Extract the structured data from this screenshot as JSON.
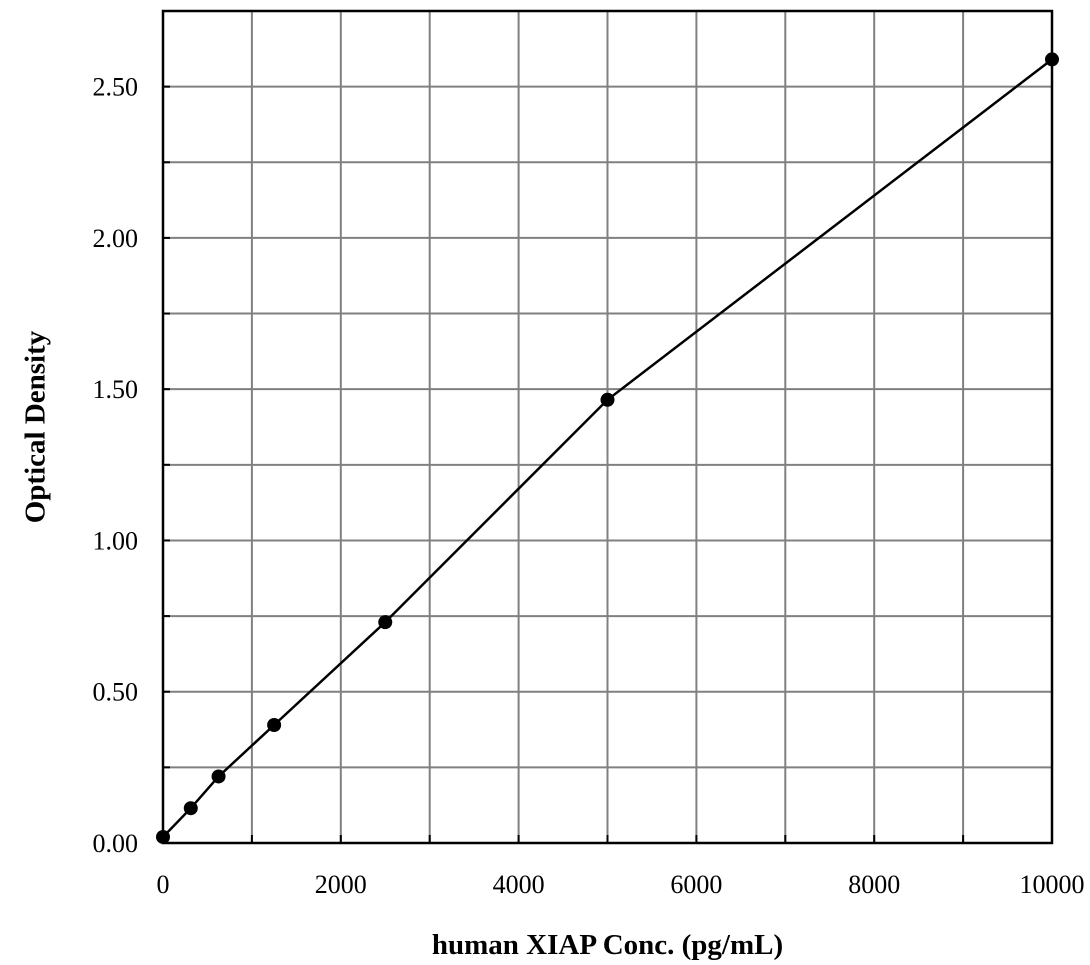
{
  "chart_data": {
    "type": "line",
    "title": "",
    "xlabel": "human XIAP Conc. (pg/mL)",
    "ylabel": "Optical Density",
    "xlim": [
      0,
      10000
    ],
    "ylim": [
      0,
      2.75
    ],
    "x_ticks": [
      0,
      2000,
      4000,
      6000,
      8000,
      10000
    ],
    "x_tick_labels": [
      "0",
      "2000",
      "4000",
      "6000",
      "8000",
      "10000"
    ],
    "y_ticks": [
      0,
      0.5,
      1.0,
      1.5,
      2.0,
      2.5
    ],
    "y_tick_labels": [
      "0.00",
      "0.50",
      "1.00",
      "1.50",
      "2.00",
      "2.50"
    ],
    "grid": true,
    "legend": "none",
    "series": [
      {
        "x": [
          0,
          312.5,
          625,
          1250,
          2500,
          5000,
          10000
        ],
        "y": [
          0.02,
          0.115,
          0.22,
          0.39,
          0.73,
          1.465,
          2.59
        ]
      }
    ],
    "colors": {
      "line": "#000000",
      "grid": "#808080",
      "marker": "#000000"
    }
  }
}
